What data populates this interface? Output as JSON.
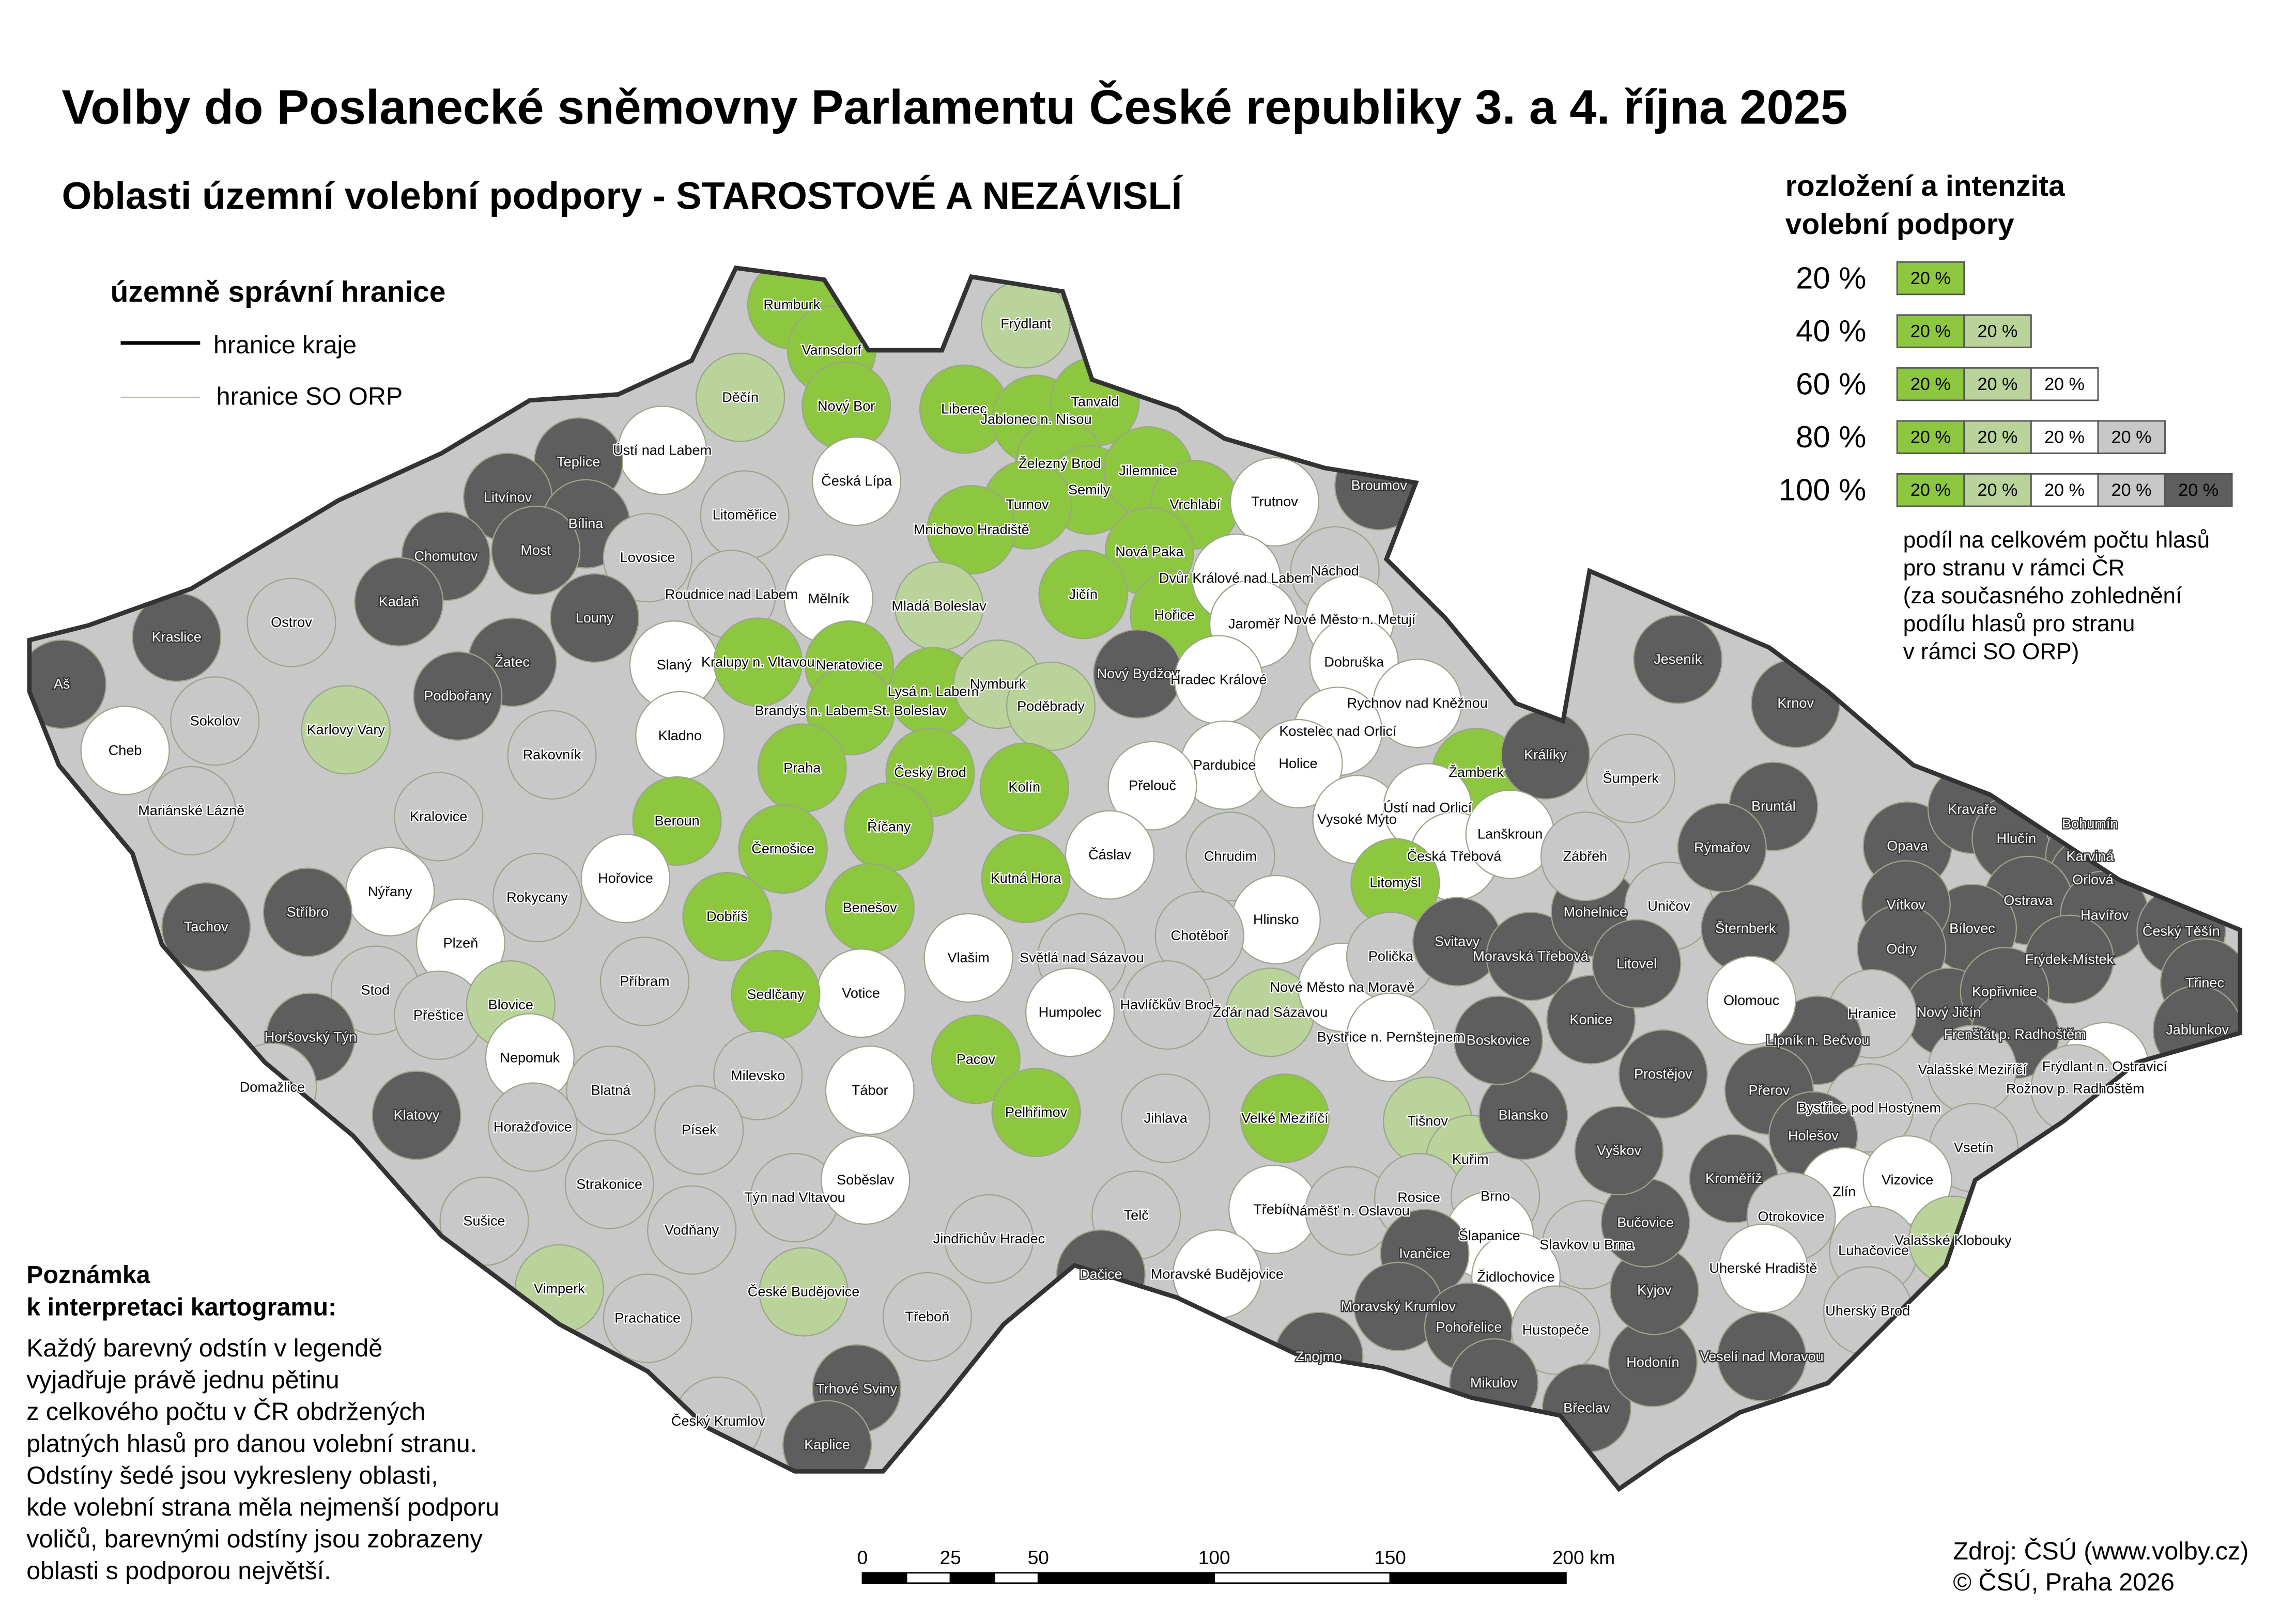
{
  "title": "Volby do Poslanecké sněmovny Parlamentu České republiky 3. a 4. října 2025",
  "subtitle": "Oblasti územní volební podpory - STAROSTOVÉ A NEZÁVISLÍ",
  "boundaries_legend": {
    "heading": "územně správní hranice",
    "region_border": "hranice kraje",
    "orp_border": "hranice SO ORP"
  },
  "support_legend": {
    "heading_line1": "rozložení a intenzita",
    "heading_line2": "volební podpory",
    "rows": [
      {
        "label": "20 %",
        "cells": [
          "20 %"
        ]
      },
      {
        "label": "40 %",
        "cells": [
          "20 %",
          "20 %"
        ]
      },
      {
        "label": "60 %",
        "cells": [
          "20 %",
          "20 %",
          "20 %"
        ]
      },
      {
        "label": "80 %",
        "cells": [
          "20 %",
          "20 %",
          "20 %",
          "20 %"
        ]
      },
      {
        "label": "100 %",
        "cells": [
          "20 %",
          "20 %",
          "20 %",
          "20 %",
          "20 %"
        ]
      }
    ],
    "colors": [
      "#8dc63f",
      "#b9d39a",
      "#ffffff",
      "#c8c8c8",
      "#5e5e5e"
    ],
    "note": [
      "podíl na celkovém počtu hlasů",
      "pro stranu v rámci ČR",
      "(za současného zohlednění",
      "podílu hlasů pro stranu",
      "v rámci SO ORP)"
    ]
  },
  "interpretation_note": {
    "heading_line1": "Poznámka",
    "heading_line2": "k interpretaci kartogramu:",
    "lines": [
      "Každý barevný odstín v legendě",
      "vyjadřuje právě jednu pětinu",
      "z celkového počtu v ČR obdržených",
      "platných hlasů pro danou volební stranu.",
      "Odstíny šedé jsou vykresleny oblasti,",
      "kde volební strana měla nejmenší podporu",
      "voličů, barevnými odstíny jsou zobrazeny",
      "oblasti s podporou největší."
    ]
  },
  "scale_bar": {
    "ticks": [
      "0",
      "25",
      "50",
      "100",
      "150",
      "200 km"
    ]
  },
  "source": {
    "line1": "Zdroj: ČSÚ (www.volby.cz)",
    "line2": "© ČSÚ, Praha 2026"
  },
  "regions": [
    [
      "Rumburk",
      1
    ],
    [
      "Varnsdorf",
      1
    ],
    [
      "Frýdlant",
      2
    ],
    [
      "Děčín",
      2
    ],
    [
      "Nový Bor",
      1
    ],
    [
      "Liberec",
      1
    ],
    [
      "Jablonec n. Nisou",
      1
    ],
    [
      "Tanvald",
      1
    ],
    [
      "Železný Brod",
      1
    ],
    [
      "Semily",
      1
    ],
    [
      "Jilemnice",
      1
    ],
    [
      "Turnov",
      1
    ],
    [
      "Vrchlabí",
      1
    ],
    [
      "Mnichovo Hradiště",
      1
    ],
    [
      "Nová Paka",
      1
    ],
    [
      "Jičín",
      1
    ],
    [
      "Hořice",
      1
    ],
    [
      "Ústí nad Labem",
      3
    ],
    [
      "Česká Lípa",
      3
    ],
    [
      "Litoměřice",
      4
    ],
    [
      "Roudnice nad Labem",
      4
    ],
    [
      "Mělník",
      3
    ],
    [
      "Mladá Boleslav",
      2
    ],
    [
      "Trutnov",
      3
    ],
    [
      "Broumov",
      5
    ],
    [
      "Teplice",
      5
    ],
    [
      "Litvínov",
      5
    ],
    [
      "Bílina",
      5
    ],
    [
      "Most",
      5
    ],
    [
      "Chomutov",
      5
    ],
    [
      "Lovosice",
      4
    ],
    [
      "Kadaň",
      5
    ],
    [
      "Louny",
      5
    ],
    [
      "Žatec",
      5
    ],
    [
      "Podbořany",
      5
    ],
    [
      "Kraslice",
      5
    ],
    [
      "Aš",
      5
    ],
    [
      "Ostrov",
      4
    ],
    [
      "Karlovy Vary",
      2
    ],
    [
      "Sokolov",
      4
    ],
    [
      "Cheb",
      3
    ],
    [
      "Mariánské Lázně",
      4
    ],
    [
      "Slaný",
      3
    ],
    [
      "Kralupy n. Vltavou",
      1
    ],
    [
      "Neratovice",
      1
    ],
    [
      "Lysá n. Labem",
      1
    ],
    [
      "Nymburk",
      2
    ],
    [
      "Brandýs n. Labem-St. Boleslav",
      1
    ],
    [
      "Poděbrady",
      2
    ],
    [
      "Kladno",
      3
    ],
    [
      "Rakovník",
      4
    ],
    [
      "Praha",
      1
    ],
    [
      "Český Brod",
      1
    ],
    [
      "Kolín",
      1
    ],
    [
      "Dvůr Králové nad Labem",
      3
    ],
    [
      "Náchod",
      4
    ],
    [
      "Jaroměř",
      3
    ],
    [
      "Nové Město n. Metují",
      3
    ],
    [
      "Nový Bydžov",
      5
    ],
    [
      "Hradec Králové",
      3
    ],
    [
      "Dobruška",
      3
    ],
    [
      "Rychnov nad Kněžnou",
      3
    ],
    [
      "Kostelec nad Orlicí",
      3
    ],
    [
      "Pardubice",
      3
    ],
    [
      "Holice",
      3
    ],
    [
      "Přelouč",
      3
    ],
    [
      "Žamberk",
      1
    ],
    [
      "Králíky",
      5
    ],
    [
      "Vysoké Mýto",
      3
    ],
    [
      "Ústí nad Orlicí",
      3
    ],
    [
      "Česká Třebová",
      3
    ],
    [
      "Lanškroun",
      3
    ],
    [
      "Chrudim",
      4
    ],
    [
      "Čáslav",
      3
    ],
    [
      "Kutná Hora",
      1
    ],
    [
      "Beroun",
      1
    ],
    [
      "Černošice",
      1
    ],
    [
      "Říčany",
      1
    ],
    [
      "Kralovice",
      4
    ],
    [
      "Hořovice",
      3
    ],
    [
      "Nýřany",
      3
    ],
    [
      "Rokycany",
      4
    ],
    [
      "Tachov",
      5
    ],
    [
      "Stříbro",
      5
    ],
    [
      "Plzeň",
      3
    ],
    [
      "Benešov",
      1
    ],
    [
      "Dobříš",
      1
    ],
    [
      "Příbram",
      4
    ],
    [
      "Litomyšl",
      1
    ],
    [
      "Hlinsko",
      3
    ],
    [
      "Světlá nad Sázavou",
      4
    ],
    [
      "Chotěboř",
      4
    ],
    [
      "Vlašim",
      3
    ],
    [
      "Votice",
      3
    ],
    [
      "Sedlčany",
      1
    ],
    [
      "Stod",
      4
    ],
    [
      "Přeštice",
      4
    ],
    [
      "Blovice",
      2
    ],
    [
      "Horšovský Týn",
      5
    ],
    [
      "Domažlice",
      4
    ],
    [
      "Nepomuk",
      3
    ],
    [
      "Humpolec",
      3
    ],
    [
      "Havlíčkův Brod",
      4
    ],
    [
      "Žďár nad Sázavou",
      2
    ],
    [
      "Nové Město na Moravě",
      3
    ],
    [
      "Polička",
      4
    ],
    [
      "Svitavy",
      5
    ],
    [
      "Moravská Třebová",
      5
    ],
    [
      "Bystřice n. Pernštejnem",
      3
    ],
    [
      "Pacov",
      1
    ],
    [
      "Pelhřimov",
      1
    ],
    [
      "Jihlava",
      4
    ],
    [
      "Velké Meziříčí",
      1
    ],
    [
      "Tábor",
      3
    ],
    [
      "Milevsko",
      4
    ],
    [
      "Blatná",
      4
    ],
    [
      "Písek",
      4
    ],
    [
      "Klatovy",
      5
    ],
    [
      "Horažďovice",
      4
    ],
    [
      "Strakonice",
      4
    ],
    [
      "Sušice",
      4
    ],
    [
      "Týn nad Vltavou",
      4
    ],
    [
      "Soběslav",
      3
    ],
    [
      "Vodňany",
      4
    ],
    [
      "Jindřichův Hradec",
      4
    ],
    [
      "Telč",
      4
    ],
    [
      "Třebíč",
      3
    ],
    [
      "Moravské Budějovice",
      3
    ],
    [
      "Dačice",
      5
    ],
    [
      "Vimperk",
      2
    ],
    [
      "Prachatice",
      4
    ],
    [
      "České Budějovice",
      2
    ],
    [
      "Třeboň",
      4
    ],
    [
      "Trhové Sviny",
      5
    ],
    [
      "Český Krumlov",
      4
    ],
    [
      "Kaplice",
      5
    ],
    [
      "Tišnov",
      2
    ],
    [
      "Kuřim",
      2
    ],
    [
      "Náměšť n. Oslavou",
      4
    ],
    [
      "Rosice",
      4
    ],
    [
      "Brno",
      4
    ],
    [
      "Šlapanice",
      3
    ],
    [
      "Slavkov u Brna",
      4
    ],
    [
      "Ivančice",
      5
    ],
    [
      "Moravský Krumlov",
      5
    ],
    [
      "Židlochovice",
      3
    ],
    [
      "Pohořelice",
      5
    ],
    [
      "Hustopeče",
      4
    ],
    [
      "Znojmo",
      5
    ],
    [
      "Mikulov",
      5
    ],
    [
      "Břeclav",
      5
    ],
    [
      "Hodonín",
      5
    ],
    [
      "Veselí nad Moravou",
      5
    ],
    [
      "Kyjov",
      5
    ],
    [
      "Bučovice",
      5
    ],
    [
      "Vyškov",
      5
    ],
    [
      "Blansko",
      5
    ],
    [
      "Boskovice",
      5
    ],
    [
      "Prostějov",
      5
    ],
    [
      "Konice",
      5
    ],
    [
      "Mohelnice",
      5
    ],
    [
      "Zábřeh",
      4
    ],
    [
      "Uničov",
      4
    ],
    [
      "Litovel",
      5
    ],
    [
      "Šternberk",
      5
    ],
    [
      "Šumperk",
      4
    ],
    [
      "Jeseník",
      5
    ],
    [
      "Krnov",
      5
    ],
    [
      "Bruntál",
      5
    ],
    [
      "Rýmařov",
      5
    ],
    [
      "Opava",
      5
    ],
    [
      "Kravaře",
      5
    ],
    [
      "Hlučín",
      5
    ],
    [
      "Bohumín",
      5
    ],
    [
      "Karviná",
      5
    ],
    [
      "Orlová",
      5
    ],
    [
      "Ostrava",
      5
    ],
    [
      "Havířov",
      5
    ],
    [
      "Český Těšín",
      5
    ],
    [
      "Třinec",
      5
    ],
    [
      "Jablunkov",
      5
    ],
    [
      "Frýdek-Místek",
      5
    ],
    [
      "Bílovec",
      5
    ],
    [
      "Vítkov",
      5
    ],
    [
      "Odry",
      5
    ],
    [
      "Nový Jičín",
      5
    ],
    [
      "Kopřivnice",
      5
    ],
    [
      "Frenštát p. Radhoštěm",
      5
    ],
    [
      "Frýdlant n. Ostravicí",
      3
    ],
    [
      "Rožnov p. Radhoštěm",
      4
    ],
    [
      "Valašské Meziříčí",
      4
    ],
    [
      "Hranice",
      4
    ],
    [
      "Lipník n. Bečvou",
      5
    ],
    [
      "Olomouc",
      3
    ],
    [
      "Přerov",
      5
    ],
    [
      "Bystřice pod Hostýnem",
      4
    ],
    [
      "Holešov",
      5
    ],
    [
      "Kroměříž",
      5
    ],
    [
      "Vsetín",
      4
    ],
    [
      "Zlín",
      3
    ],
    [
      "Vizovice",
      3
    ],
    [
      "Otrokovice",
      4
    ],
    [
      "Luhačovice",
      4
    ],
    [
      "Valašské Klobouky",
      2
    ],
    [
      "Uherské Hradiště",
      3
    ],
    [
      "Uherský Brod",
      4
    ]
  ]
}
